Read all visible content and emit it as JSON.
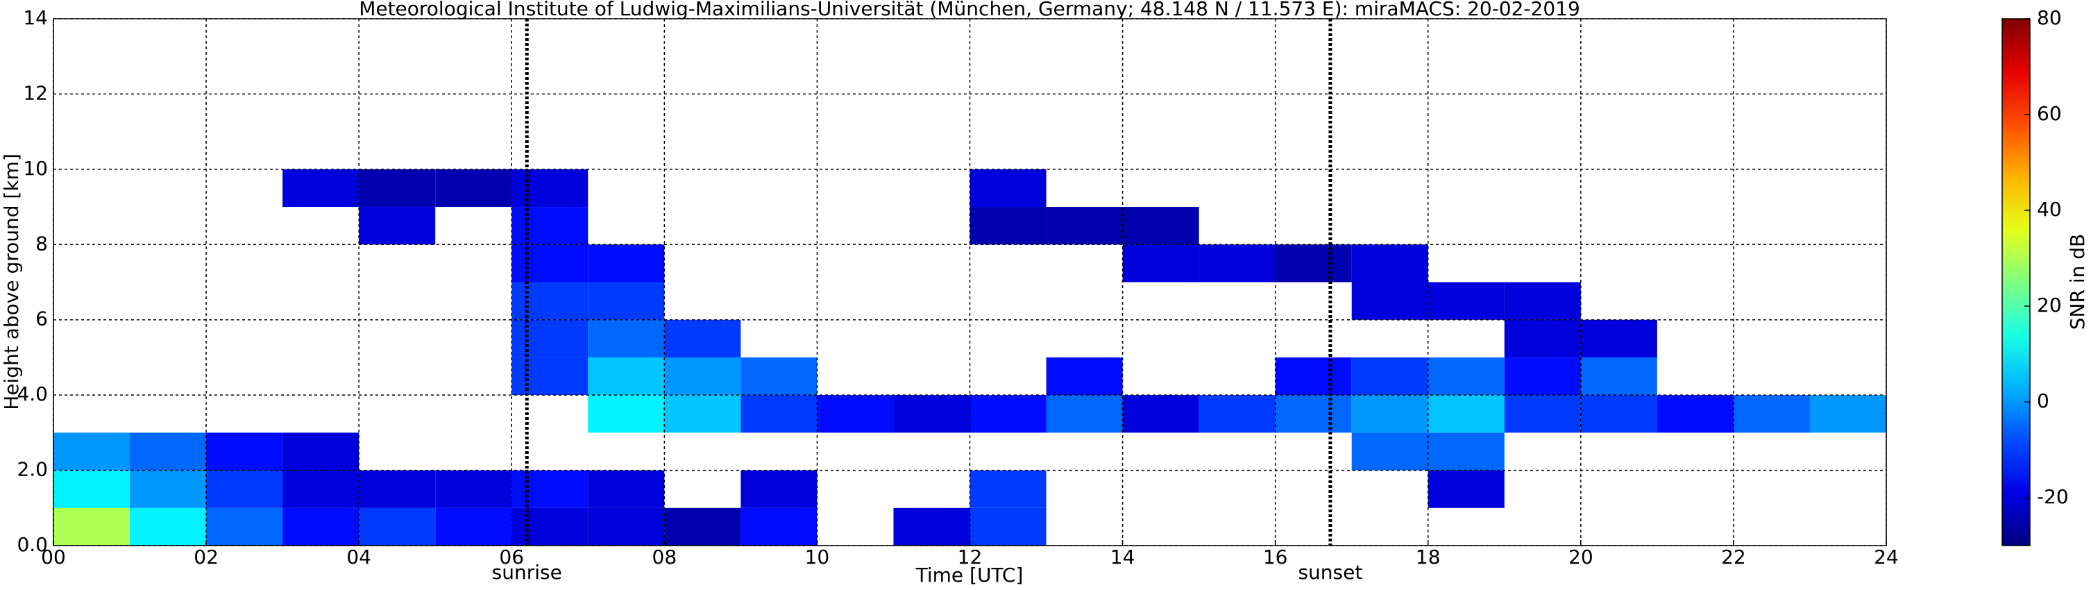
{
  "chart_data": {
    "type": "heatmap",
    "title": "Meteorological Institute of Ludwig-Maximilians-Universität (München, Germany; 48.148 N / 11.573 E):    miraMACS: 20-02-2019",
    "x_label": "Time [UTC]",
    "y_label": "Height above ground [km]",
    "colorbar_label": "SNR in dB",
    "colormap": "jet",
    "x_bins": [
      0,
      1,
      2,
      3,
      4,
      5,
      6,
      7,
      8,
      9,
      10,
      11,
      12,
      13,
      14,
      15,
      16,
      17,
      18,
      19,
      20,
      21,
      22,
      23,
      24
    ],
    "y_bins": [
      0,
      1,
      2,
      3,
      4,
      5,
      6,
      7,
      8,
      9,
      10,
      11,
      12,
      13,
      14
    ],
    "z": [
      [
        30,
        10,
        -5,
        -15,
        -10,
        -15,
        -20,
        -20,
        -25,
        -15,
        null,
        -20,
        -10,
        null,
        null,
        null,
        null,
        null,
        null,
        null,
        null,
        null,
        null,
        null
      ],
      [
        10,
        0,
        -10,
        -20,
        -20,
        -20,
        -15,
        -20,
        null,
        -20,
        null,
        null,
        -10,
        null,
        null,
        null,
        null,
        null,
        -20,
        null,
        null,
        null,
        null,
        null
      ],
      [
        0,
        -5,
        -15,
        -20,
        null,
        null,
        null,
        null,
        null,
        null,
        null,
        null,
        null,
        null,
        null,
        null,
        null,
        -5,
        -5,
        null,
        null,
        null,
        null,
        null
      ],
      [
        null,
        null,
        null,
        null,
        null,
        null,
        null,
        10,
        5,
        -10,
        -15,
        -20,
        -15,
        -5,
        -20,
        -10,
        -5,
        0,
        5,
        -10,
        -10,
        -15,
        -5,
        0
      ],
      [
        null,
        null,
        null,
        null,
        null,
        null,
        -10,
        5,
        0,
        -5,
        null,
        null,
        null,
        -15,
        null,
        null,
        -15,
        -10,
        -5,
        -15,
        -5,
        null,
        null,
        null
      ],
      [
        null,
        null,
        null,
        null,
        null,
        null,
        -10,
        -5,
        -10,
        null,
        null,
        null,
        null,
        null,
        null,
        null,
        null,
        null,
        null,
        -20,
        -20,
        null,
        null,
        null
      ],
      [
        null,
        null,
        null,
        null,
        null,
        null,
        -10,
        -10,
        null,
        null,
        null,
        null,
        null,
        null,
        null,
        null,
        null,
        -20,
        -20,
        -20,
        null,
        null,
        null,
        null
      ],
      [
        null,
        null,
        null,
        null,
        null,
        null,
        -15,
        -15,
        null,
        null,
        null,
        null,
        null,
        null,
        -20,
        -20,
        -25,
        -20,
        null,
        null,
        null,
        null,
        null,
        null
      ],
      [
        null,
        null,
        null,
        null,
        -20,
        null,
        -15,
        null,
        null,
        null,
        null,
        null,
        -25,
        -25,
        -25,
        null,
        null,
        null,
        null,
        null,
        null,
        null,
        null,
        null
      ],
      [
        null,
        null,
        null,
        -20,
        -25,
        -25,
        -20,
        null,
        null,
        null,
        null,
        null,
        -20,
        null,
        null,
        null,
        null,
        null,
        null,
        null,
        null,
        null,
        null,
        null
      ],
      [
        null,
        null,
        null,
        null,
        null,
        null,
        null,
        null,
        null,
        null,
        null,
        null,
        null,
        null,
        null,
        null,
        null,
        null,
        null,
        null,
        null,
        null,
        null,
        null
      ],
      [
        null,
        null,
        null,
        null,
        null,
        null,
        null,
        null,
        null,
        null,
        null,
        null,
        null,
        null,
        null,
        null,
        null,
        null,
        null,
        null,
        null,
        null,
        null,
        null
      ],
      [
        null,
        null,
        null,
        null,
        null,
        null,
        null,
        null,
        null,
        null,
        null,
        null,
        null,
        null,
        null,
        null,
        null,
        null,
        null,
        null,
        null,
        null,
        null,
        null
      ],
      [
        null,
        null,
        null,
        null,
        null,
        null,
        null,
        null,
        null,
        null,
        null,
        null,
        null,
        null,
        null,
        null,
        null,
        null,
        null,
        null,
        null,
        null,
        null,
        null
      ]
    ],
    "xlim": [
      0,
      24
    ],
    "ylim": [
      0,
      14
    ],
    "zlim": [
      -30,
      80
    ],
    "xticks": [
      {
        "value": 0,
        "label": "00"
      },
      {
        "value": 2,
        "label": "02"
      },
      {
        "value": 4,
        "label": "04"
      },
      {
        "value": 6,
        "label": "06"
      },
      {
        "value": 8,
        "label": "08"
      },
      {
        "value": 10,
        "label": "10"
      },
      {
        "value": 12,
        "label": "12"
      },
      {
        "value": 14,
        "label": "14"
      },
      {
        "value": 16,
        "label": "16"
      },
      {
        "value": 18,
        "label": "18"
      },
      {
        "value": 20,
        "label": "20"
      },
      {
        "value": 22,
        "label": "22"
      },
      {
        "value": 24,
        "label": "24"
      }
    ],
    "yticks": [
      {
        "value": 0,
        "label": "0.0"
      },
      {
        "value": 2,
        "label": "2.0"
      },
      {
        "value": 4,
        "label": "4.0"
      },
      6,
      8,
      10,
      12,
      14
    ],
    "zticks": [
      -20,
      0,
      20,
      40,
      60,
      80
    ],
    "grid": true,
    "annotations": [
      {
        "text": "sunrise",
        "x": 6.2
      },
      {
        "text": "sunset",
        "x": 16.72
      }
    ]
  }
}
